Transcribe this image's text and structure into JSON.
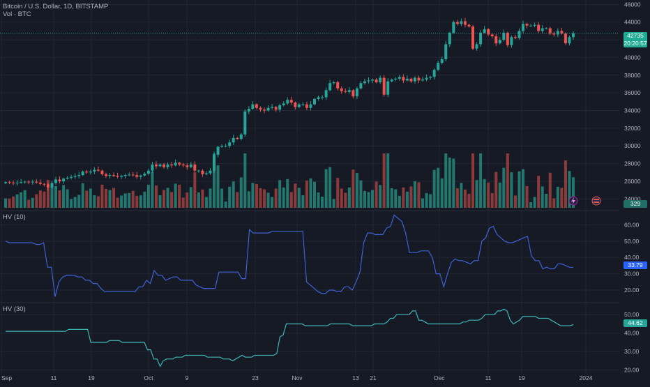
{
  "header": {
    "symbol_line": "Bitcoin / U.S. Dollar, 1D, BITSTAMP",
    "volume_label": "Vol · BTC"
  },
  "indicators": {
    "hv10_label": "HV (10)",
    "hv30_label": "HV (30)"
  },
  "tags": {
    "last_price": "42735",
    "countdown": "20:20:57",
    "volume": "329",
    "hv10": "33.79",
    "hv30": "44.62"
  },
  "colors": {
    "background": "#161a25",
    "up": "#26a69a",
    "down": "#ef5350",
    "vol_up": "#22786f",
    "vol_down": "#8c3a3a",
    "hv10_line": "#3f62d6",
    "hv30_line": "#3fb6b6",
    "grid": "#232735"
  },
  "icons": [
    "lightning-icon",
    "us-flag-icon"
  ],
  "chart_data": {
    "type": "candlestick",
    "x_tick_labels": [
      "Sep",
      "11",
      "19",
      "Oct",
      "9",
      "23",
      "Nov",
      "13",
      "21",
      "Dec",
      "11",
      "19",
      "2024"
    ],
    "price_axis": {
      "ticks": [
        "46000",
        "44000",
        "42000",
        "40000",
        "38000",
        "36000",
        "34000",
        "32000",
        "30000",
        "28000",
        "26000",
        "24000"
      ],
      "range": [
        23000,
        46500
      ]
    },
    "closes": [
      25900,
      25850,
      25800,
      25850,
      25900,
      25950,
      25900,
      25950,
      25850,
      25700,
      25650,
      25300,
      25800,
      26200,
      26000,
      26300,
      26400,
      26500,
      26600,
      26700,
      27100,
      27000,
      27100,
      27300,
      27200,
      26800,
      26600,
      26700,
      26600,
      26500,
      26600,
      26700,
      26750,
      26700,
      26500,
      26650,
      26850,
      27200,
      27900,
      27700,
      27900,
      27600,
      27900,
      27800,
      28100,
      27900,
      27800,
      27600,
      27900,
      27200,
      27200,
      26800,
      26900,
      27200,
      29000,
      29900,
      30000,
      30000,
      30400,
      30900,
      30800,
      31300,
      33900,
      34200,
      34700,
      34300,
      34100,
      34000,
      34300,
      34400,
      34100,
      34600,
      34800,
      35200,
      34900,
      34400,
      34700,
      34700,
      34300,
      34700,
      35300,
      35500,
      35500,
      36300,
      37100,
      37200,
      36500,
      36200,
      36100,
      36300,
      35600,
      36500,
      37100,
      37300,
      37400,
      37500,
      37200,
      37700,
      35800,
      37300,
      37500,
      37600,
      37800,
      37400,
      37600,
      37300,
      37700,
      37400,
      37500,
      37700,
      37800,
      38600,
      39400,
      39800,
      41500,
      42800,
      44000,
      43800,
      44100,
      43700,
      43500,
      41000,
      41500,
      42800,
      43200,
      42600,
      42400,
      41600,
      42000,
      42800,
      41400,
      42300,
      42200,
      43000,
      43800,
      43600,
      43600,
      43700,
      43000,
      43300,
      43300,
      42700,
      42600,
      43000,
      42700,
      41600,
      42300,
      42735
    ],
    "volume": {
      "label": "Vol · BTC",
      "last": 329,
      "pattern": "spikes on breakouts, mostly low"
    },
    "hv10": {
      "label": "HV (10)",
      "axis_ticks": [
        "60.00",
        "50.00",
        "40.00",
        "30.00",
        "20.00"
      ],
      "range": [
        14,
        67
      ],
      "values": [
        50,
        49,
        49,
        49,
        49,
        49,
        49,
        49,
        48,
        48,
        49,
        34,
        34,
        16,
        25,
        28,
        29,
        29,
        29,
        28,
        28,
        26,
        26,
        24,
        24,
        21,
        19,
        19,
        19,
        19,
        19,
        19,
        19,
        19,
        19,
        22,
        22,
        26,
        24,
        32,
        29,
        29,
        26,
        27,
        28,
        28,
        26,
        26,
        26,
        26,
        23,
        22,
        21,
        21,
        21,
        21,
        31,
        31,
        31,
        31,
        31,
        31,
        27,
        27,
        57,
        55,
        55,
        55,
        55,
        55,
        56,
        56,
        56,
        56,
        56,
        56,
        56,
        56,
        56,
        25,
        23,
        21,
        19,
        18,
        18,
        20,
        20,
        19,
        19,
        22,
        22,
        20,
        25,
        31,
        49,
        55,
        55,
        54,
        54,
        54,
        58,
        59,
        66,
        64,
        62,
        55,
        43,
        43,
        43,
        44,
        44,
        44,
        40,
        30,
        30,
        22,
        30,
        37,
        39,
        38,
        38,
        37,
        36,
        38,
        38,
        50,
        52,
        58,
        59,
        54,
        52,
        50,
        49,
        49,
        50,
        51,
        52,
        53,
        41,
        38,
        38,
        33,
        34,
        33,
        33,
        36,
        36,
        35,
        34,
        33.79
      ]
    },
    "hv30": {
      "label": "HV (30)",
      "axis_ticks": [
        "50.00",
        "40.00",
        "30.00",
        "20.00"
      ],
      "range": [
        18,
        55
      ],
      "values": [
        41,
        41,
        41,
        41,
        41,
        41,
        41,
        41,
        41,
        41,
        41,
        41,
        41,
        41,
        41,
        41,
        41,
        41,
        41,
        41,
        42,
        42,
        42,
        42,
        42,
        42,
        42,
        35,
        35,
        35,
        35,
        35,
        35,
        36,
        36,
        36,
        36,
        35,
        35,
        35,
        35,
        35,
        35,
        35,
        35,
        31,
        31,
        26,
        26,
        22,
        25,
        26,
        26,
        26,
        27,
        27,
        27,
        28,
        28,
        28,
        28,
        28,
        28,
        28,
        27,
        27,
        27,
        27,
        27,
        26,
        26,
        26,
        25,
        26,
        27,
        28,
        27,
        27,
        27,
        28,
        28,
        28,
        28,
        28,
        28,
        28,
        29,
        38,
        39,
        45,
        45,
        45,
        45,
        45,
        45,
        44,
        44,
        44,
        44,
        44,
        44,
        44,
        44,
        45,
        45,
        45,
        45,
        45,
        45,
        45,
        44,
        44,
        44,
        44,
        44,
        44,
        44,
        45,
        45,
        45,
        45,
        46,
        48,
        48,
        50,
        50,
        50,
        50,
        50,
        52,
        52,
        47,
        47,
        46,
        45,
        45,
        45,
        45,
        45,
        45,
        45,
        45,
        45,
        45,
        45,
        46,
        46,
        47,
        47,
        47,
        47,
        48,
        50,
        50,
        50,
        50,
        52,
        52,
        53,
        52,
        47,
        45,
        46,
        47,
        49,
        49,
        49,
        49,
        49,
        48,
        48,
        48,
        48,
        47,
        46,
        45,
        44,
        44,
        44,
        44,
        44.62
      ]
    }
  }
}
